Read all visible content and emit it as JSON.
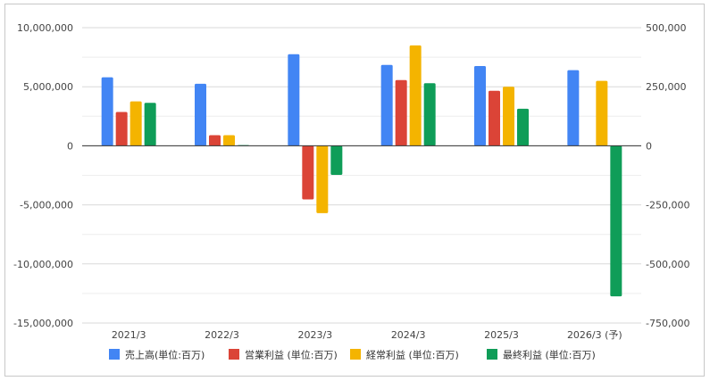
{
  "chart_data": {
    "type": "bar",
    "categories": [
      "2021/3",
      "2022/3",
      "2023/3",
      "2024/3",
      "2025/3",
      "2026/3 (予)"
    ],
    "series": [
      {
        "name": "売上高(単位:百万)",
        "axis": "left",
        "color": "#4285f4",
        "values": [
          5800000,
          5250000,
          7750000,
          6850000,
          6750000,
          6400000
        ]
      },
      {
        "name": "営業利益 (単位:百万)",
        "axis": "right",
        "color": "#db4437",
        "values": [
          143000,
          45000,
          -227000,
          278000,
          233000,
          null
        ]
      },
      {
        "name": "経常利益 (単位:百万)",
        "axis": "right",
        "color": "#f4b400",
        "values": [
          188000,
          45000,
          -285000,
          425000,
          250000,
          275000
        ]
      },
      {
        "name": "最終利益 (単位:百万)",
        "axis": "right",
        "color": "#0f9d58",
        "values": [
          182000,
          3000,
          -123000,
          265000,
          157000,
          -637000
        ]
      }
    ],
    "y_left": {
      "range": [
        -15000000,
        10000000
      ],
      "ticks": [
        10000000,
        5000000,
        0,
        -5000000,
        -10000000,
        -15000000
      ],
      "tick_labels": [
        "10,000,000",
        "5,000,000",
        "0",
        "-5,000,000",
        "-10,000,000",
        "-15,000,000"
      ]
    },
    "y_right": {
      "range": [
        -750000,
        500000
      ],
      "ticks": [
        500000,
        250000,
        0,
        -250000,
        -500000,
        -750000
      ],
      "tick_labels": [
        "500,000",
        "250,000",
        "0",
        "-250,000",
        "-500,000",
        "-750,000"
      ]
    },
    "grid": true,
    "legend_position": "bottom"
  }
}
